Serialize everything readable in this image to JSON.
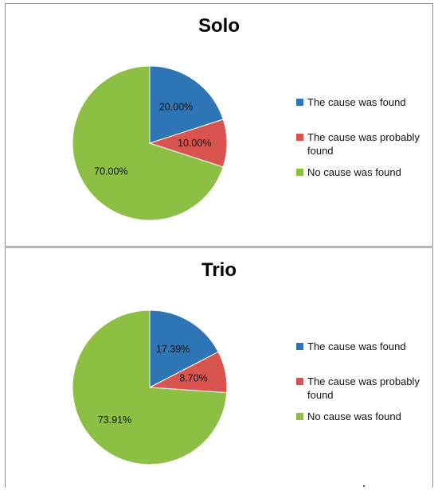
{
  "chart_data": [
    {
      "type": "pie",
      "title": "Solo",
      "categories": [
        "The cause was found",
        "The cause was probably found",
        "No cause was found"
      ],
      "values": [
        20.0,
        10.0,
        70.0
      ],
      "labels": [
        "20.00%",
        "10.00%",
        "70.00%"
      ],
      "colors": [
        "#2e75b6",
        "#d9534f",
        "#8dbf44"
      ],
      "legend_position": "right"
    },
    {
      "type": "pie",
      "title": "Trio",
      "categories": [
        "The cause was found",
        "The cause was probably found",
        "No cause was found"
      ],
      "values": [
        17.39,
        8.7,
        73.91
      ],
      "labels": [
        "17.39%",
        "8.70%",
        "73.91%"
      ],
      "colors": [
        "#2e75b6",
        "#d9534f",
        "#8dbf44"
      ],
      "legend_position": "right"
    }
  ]
}
